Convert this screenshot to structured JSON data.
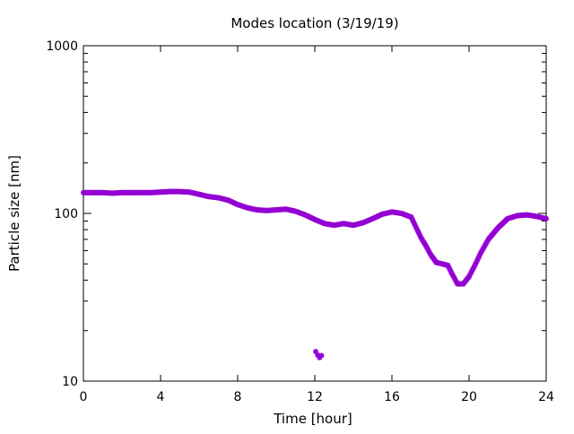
{
  "chart_data": {
    "type": "scatter",
    "title": "Modes location (3/19/19)",
    "xlabel": "Time [hour]",
    "ylabel": "Particle size [nm]",
    "xlim": [
      0,
      24
    ],
    "ylim": [
      10,
      1000
    ],
    "yscale": "log",
    "grid": false,
    "legend": "none",
    "marker_color": "#9400d3",
    "xticks": [
      {
        "value": 0,
        "label": "0"
      },
      {
        "value": 4,
        "label": "4"
      },
      {
        "value": 8,
        "label": "8"
      },
      {
        "value": 12,
        "label": "12"
      },
      {
        "value": 16,
        "label": "16"
      },
      {
        "value": 20,
        "label": "20"
      },
      {
        "value": 24,
        "label": "24"
      }
    ],
    "yticks": [
      {
        "value": 10,
        "label": "10"
      },
      {
        "value": 100,
        "label": "100"
      },
      {
        "value": 1000,
        "label": "1000"
      }
    ],
    "points": [
      {
        "x": 0.0,
        "y": 133
      },
      {
        "x": 0.5,
        "y": 133
      },
      {
        "x": 1.0,
        "y": 133
      },
      {
        "x": 1.5,
        "y": 132
      },
      {
        "x": 2.0,
        "y": 133
      },
      {
        "x": 2.5,
        "y": 133
      },
      {
        "x": 3.0,
        "y": 133
      },
      {
        "x": 3.5,
        "y": 133
      },
      {
        "x": 4.0,
        "y": 134
      },
      {
        "x": 4.5,
        "y": 135
      },
      {
        "x": 5.0,
        "y": 135
      },
      {
        "x": 5.5,
        "y": 134
      },
      {
        "x": 6.0,
        "y": 130
      },
      {
        "x": 6.5,
        "y": 126
      },
      {
        "x": 7.0,
        "y": 124
      },
      {
        "x": 7.5,
        "y": 120
      },
      {
        "x": 8.0,
        "y": 113
      },
      {
        "x": 8.5,
        "y": 108
      },
      {
        "x": 9.0,
        "y": 105
      },
      {
        "x": 9.5,
        "y": 104
      },
      {
        "x": 10.0,
        "y": 105
      },
      {
        "x": 10.5,
        "y": 106
      },
      {
        "x": 11.0,
        "y": 103
      },
      {
        "x": 11.5,
        "y": 98
      },
      {
        "x": 12.0,
        "y": 92
      },
      {
        "x": 12.5,
        "y": 87
      },
      {
        "x": 13.0,
        "y": 85
      },
      {
        "x": 13.5,
        "y": 87
      },
      {
        "x": 14.0,
        "y": 85
      },
      {
        "x": 14.5,
        "y": 88
      },
      {
        "x": 15.0,
        "y": 93
      },
      {
        "x": 15.5,
        "y": 99
      },
      {
        "x": 16.0,
        "y": 102
      },
      {
        "x": 16.5,
        "y": 100
      },
      {
        "x": 17.0,
        "y": 95
      },
      {
        "x": 17.2,
        "y": 85
      },
      {
        "x": 17.5,
        "y": 72
      },
      {
        "x": 17.8,
        "y": 63
      },
      {
        "x": 18.0,
        "y": 57
      },
      {
        "x": 18.3,
        "y": 51
      },
      {
        "x": 18.6,
        "y": 50
      },
      {
        "x": 18.9,
        "y": 49
      },
      {
        "x": 19.1,
        "y": 44
      },
      {
        "x": 19.4,
        "y": 38
      },
      {
        "x": 19.7,
        "y": 38
      },
      {
        "x": 20.0,
        "y": 42
      },
      {
        "x": 20.3,
        "y": 49
      },
      {
        "x": 20.6,
        "y": 58
      },
      {
        "x": 21.0,
        "y": 70
      },
      {
        "x": 21.5,
        "y": 82
      },
      {
        "x": 22.0,
        "y": 93
      },
      {
        "x": 22.5,
        "y": 97
      },
      {
        "x": 23.0,
        "y": 98
      },
      {
        "x": 23.5,
        "y": 96
      },
      {
        "x": 24.0,
        "y": 93
      },
      {
        "x": 12.05,
        "y": 15
      },
      {
        "x": 12.15,
        "y": 14.3
      },
      {
        "x": 12.25,
        "y": 13.8
      },
      {
        "x": 12.35,
        "y": 14.2
      }
    ]
  }
}
